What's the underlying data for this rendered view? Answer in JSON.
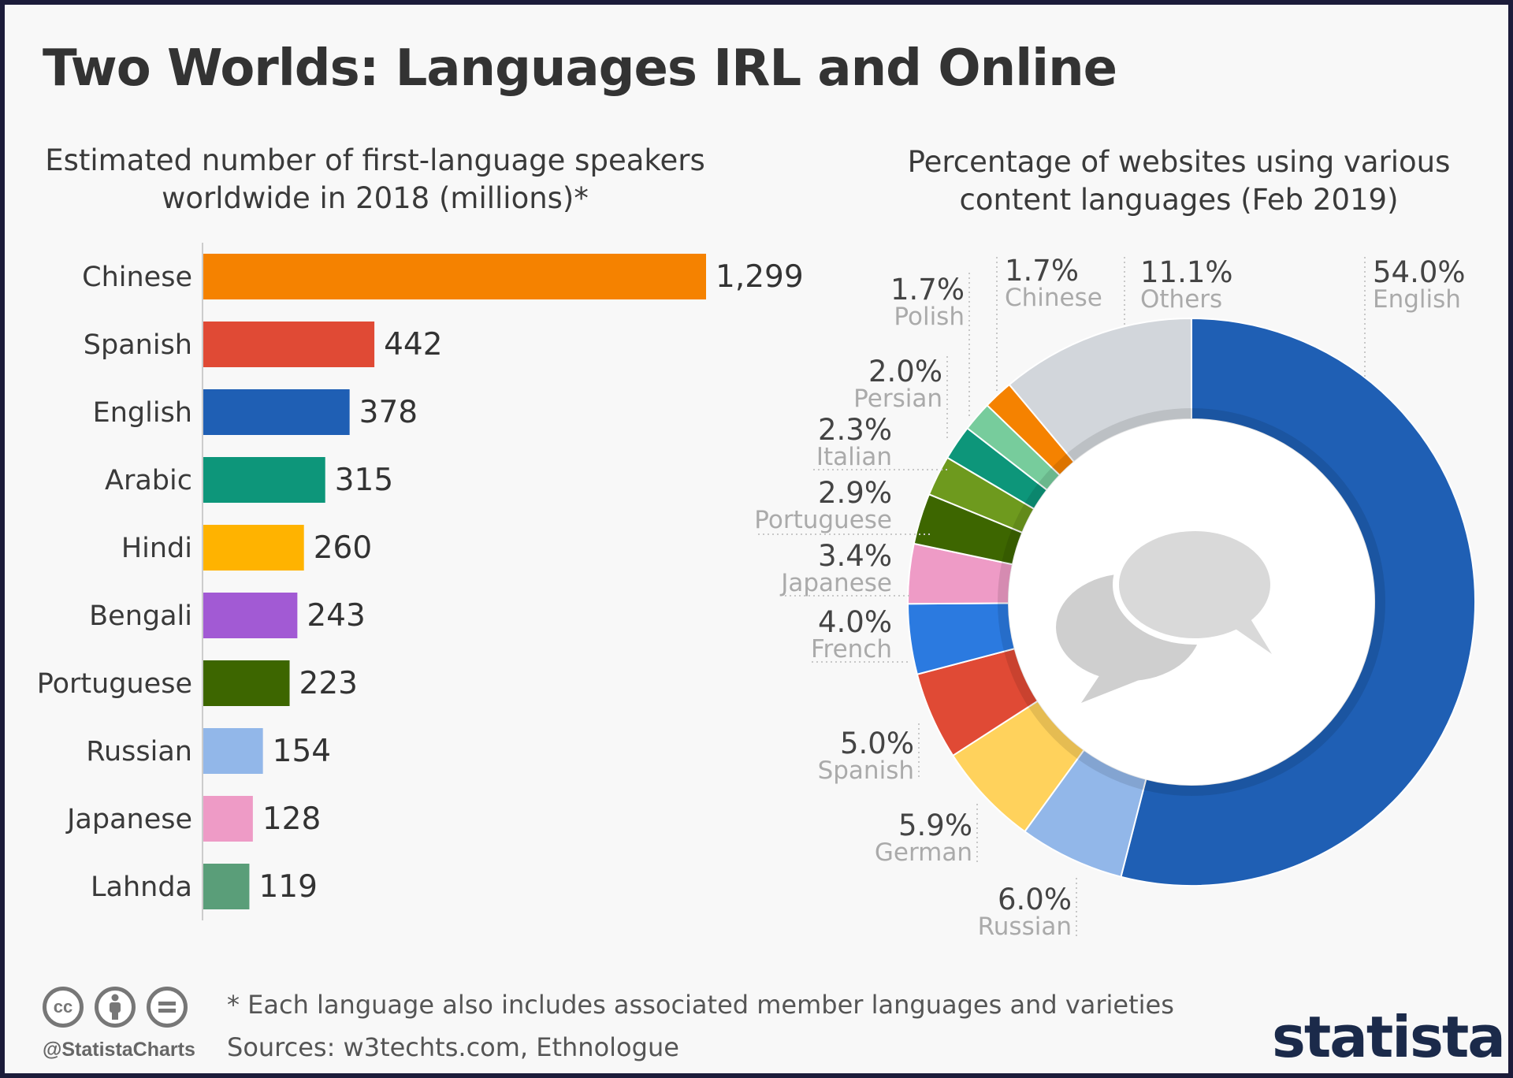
{
  "title": "Two Worlds: Languages IRL and Online",
  "left_subtitle": "Estimated number of first-language speakers worldwide in 2018 (millions)*",
  "right_subtitle": "Percentage of websites using various content languages (Feb 2019)",
  "footnote": "* Each language also includes associated member languages and varieties",
  "sources": "Sources: w3techts.com, Ethnologue",
  "handle": "@StatistaCharts",
  "brand": "statista",
  "license_icons": [
    "cc-icon",
    "attribution-icon",
    "no-derivatives-icon"
  ],
  "chart_data": [
    {
      "type": "bar",
      "orientation": "horizontal",
      "title": "Estimated number of first-language speakers worldwide in 2018 (millions)*",
      "categories": [
        "Chinese",
        "Spanish",
        "English",
        "Arabic",
        "Hindi",
        "Bengali",
        "Portuguese",
        "Russian",
        "Japanese",
        "Lahnda"
      ],
      "values": [
        1299,
        442,
        378,
        315,
        260,
        243,
        223,
        154,
        128,
        119
      ],
      "value_labels": [
        "1,299",
        "442",
        "378",
        "315",
        "260",
        "243",
        "223",
        "154",
        "128",
        "119"
      ],
      "colors": [
        "#f58200",
        "#e04a35",
        "#1f5fb4",
        "#0d967a",
        "#ffb300",
        "#a25ad4",
        "#3d6600",
        "#92b7e9",
        "#ee9bc6",
        "#5a9e79"
      ],
      "xlim": [
        0,
        1299
      ],
      "grid": false,
      "legend": "none"
    },
    {
      "type": "pie",
      "variant": "donut",
      "title": "Percentage of websites using various content languages (Feb 2019)",
      "slices": [
        {
          "label": "English",
          "value": 54.0,
          "text": "54.0%",
          "color": "#1f5fb4"
        },
        {
          "label": "Russian",
          "value": 6.0,
          "text": "6.0%",
          "color": "#92b7e9"
        },
        {
          "label": "German",
          "value": 5.9,
          "text": "5.9%",
          "color": "#ffd25c"
        },
        {
          "label": "Spanish",
          "value": 5.0,
          "text": "5.0%",
          "color": "#e04a35"
        },
        {
          "label": "French",
          "value": 4.0,
          "text": "4.0%",
          "color": "#2b7ae0"
        },
        {
          "label": "Japanese",
          "value": 3.4,
          "text": "3.4%",
          "color": "#ee9bc6"
        },
        {
          "label": "Portuguese",
          "value": 2.9,
          "text": "2.9%",
          "color": "#3d6600"
        },
        {
          "label": "Italian",
          "value": 2.3,
          "text": "2.3%",
          "color": "#6e9a1e"
        },
        {
          "label": "Persian",
          "value": 2.0,
          "text": "2.0%",
          "color": "#0d967a"
        },
        {
          "label": "Polish",
          "value": 1.7,
          "text": "1.7%",
          "color": "#77cc9c"
        },
        {
          "label": "Chinese",
          "value": 1.7,
          "text": "1.7%",
          "color": "#f58200"
        },
        {
          "label": "Others",
          "value": 11.1,
          "text": "11.1%",
          "color": "#d2d6db"
        }
      ],
      "center_icon": "speech-bubbles-icon"
    }
  ]
}
